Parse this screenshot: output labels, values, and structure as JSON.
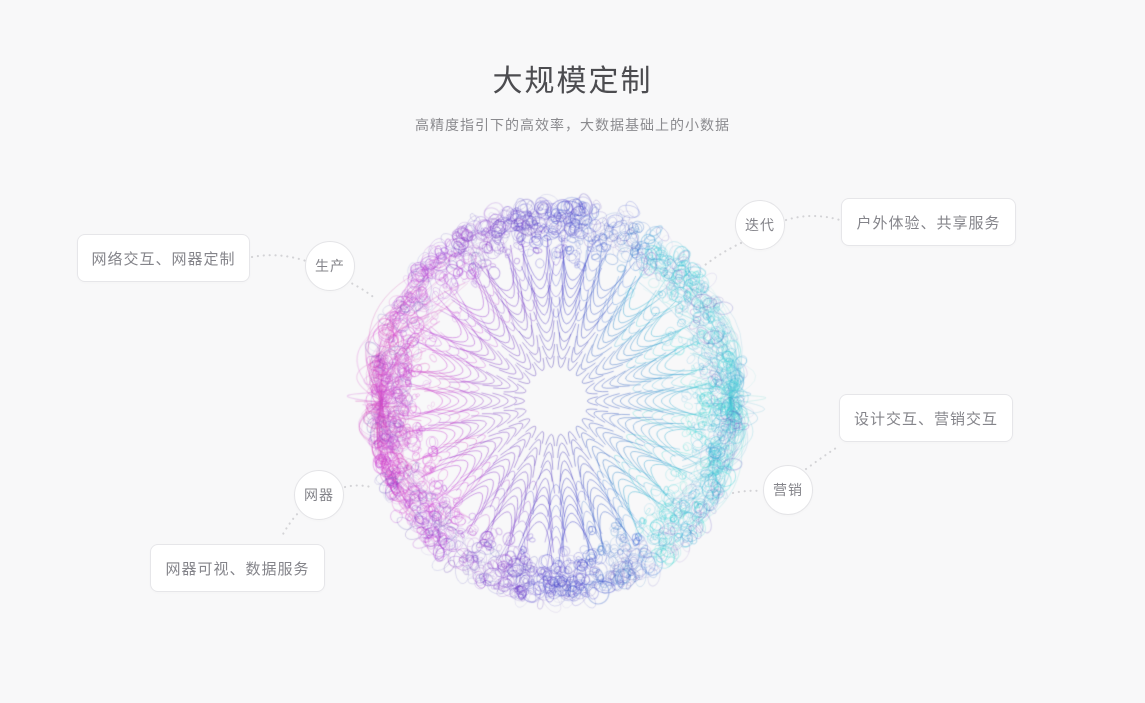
{
  "header": {
    "title": "大规模定制",
    "subtitle": "高精度指引下的高效率，大数据基础上的小数据"
  },
  "diagram": {
    "nodes": [
      {
        "id": "production",
        "label": "生产"
      },
      {
        "id": "iteration",
        "label": "迭代"
      },
      {
        "id": "marketing",
        "label": "营销"
      },
      {
        "id": "smart-device",
        "label": "网器"
      }
    ],
    "cards": [
      {
        "id": "network-interaction",
        "label": "网络交互、网器定制"
      },
      {
        "id": "outdoor-experience",
        "label": "户外体验、共享服务"
      },
      {
        "id": "design-interaction",
        "label": "设计交互、营销交互"
      },
      {
        "id": "device-visualization",
        "label": "网器可视、数据服务"
      }
    ],
    "sphere_palette": {
      "left_magenta": "#c05fb6",
      "top_indigo": "#6f6fc4",
      "right_cyan": "#4fc9dd",
      "core_slate": "#5d5da6"
    }
  },
  "theme": {
    "background": "#f8f8f9",
    "card_background": "#ffffff",
    "card_border": "#e6e6e9",
    "text_primary": "#4c4c50",
    "text_secondary": "#8a8a8e",
    "label_text": "#84848a",
    "connector_dots": "#d3d3d6"
  }
}
